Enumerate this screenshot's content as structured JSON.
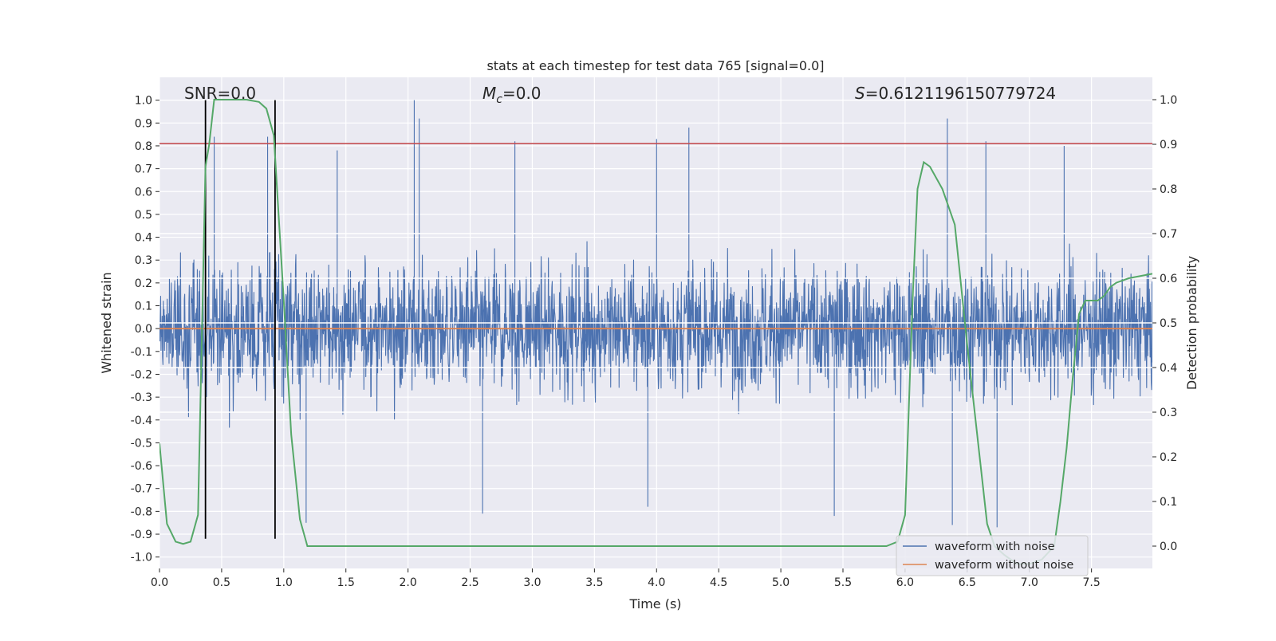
{
  "chart_data": {
    "type": "line",
    "title": "stats at each timestep for test data 765 [signal=0.0]",
    "xlabel": "Time (s)",
    "ylabel_left": "Whitened strain",
    "ylabel_right": "Detection probability",
    "xlim": [
      0.0,
      7.99
    ],
    "ylim_left": [
      -1.05,
      1.1
    ],
    "ylim_right": [
      -0.05,
      1.05
    ],
    "x_ticks": [
      "0.0",
      "0.5",
      "1.0",
      "1.5",
      "2.0",
      "2.5",
      "3.0",
      "3.5",
      "4.0",
      "4.5",
      "5.0",
      "5.5",
      "6.0",
      "6.5",
      "7.0",
      "7.5"
    ],
    "y_ticks_left": [
      "-1.0",
      "-0.9",
      "-0.8",
      "-0.7",
      "-0.6",
      "-0.5",
      "-0.4",
      "-0.3",
      "-0.2",
      "-0.1",
      "0.0",
      "0.1",
      "0.2",
      "0.3",
      "0.4",
      "0.5",
      "0.6",
      "0.7",
      "0.8",
      "0.9",
      "1.0"
    ],
    "y_ticks_right": [
      "0.0",
      "0.1",
      "0.2",
      "0.3",
      "0.4",
      "0.5",
      "0.6",
      "0.7",
      "0.8",
      "0.9",
      "1.0"
    ],
    "grid": true,
    "legend_position": "lower-right",
    "annotations": {
      "snr": "SNR=0.0",
      "mc_symbol": "M",
      "mc_subscript": "c",
      "mc_value": "=0.0",
      "s_symbol": "S",
      "s_value": "=0.6121196150779724"
    },
    "series": [
      {
        "name": "waveform with noise",
        "axis": "left",
        "color": "#4c72b0",
        "noise_sigma": 0.19,
        "peaks": [
          {
            "x": 0.44,
            "y": 0.84
          },
          {
            "x": 0.87,
            "y": 0.84
          },
          {
            "x": 1.43,
            "y": 0.78
          },
          {
            "x": 2.05,
            "y": 1.0
          },
          {
            "x": 2.09,
            "y": 0.92
          },
          {
            "x": 2.86,
            "y": 0.82
          },
          {
            "x": 4.0,
            "y": 0.83
          },
          {
            "x": 4.26,
            "y": 0.88
          },
          {
            "x": 6.34,
            "y": 0.92
          },
          {
            "x": 6.65,
            "y": 0.82
          },
          {
            "x": 7.28,
            "y": 0.8
          },
          {
            "x": 1.18,
            "y": -0.85
          },
          {
            "x": 2.6,
            "y": -0.81
          },
          {
            "x": 3.93,
            "y": -0.78
          },
          {
            "x": 5.43,
            "y": -0.82
          },
          {
            "x": 6.38,
            "y": -0.86
          },
          {
            "x": 6.74,
            "y": -0.87
          }
        ]
      },
      {
        "name": "waveform without noise",
        "axis": "left",
        "color": "#dd8452",
        "y_constant": 0.0
      },
      {
        "name": "Detection probability",
        "axis": "right",
        "color": "#55a868",
        "x": [
          0.0,
          0.06,
          0.13,
          0.19,
          0.25,
          0.31,
          0.37,
          0.4,
          0.44,
          0.5,
          0.6,
          0.7,
          0.8,
          0.86,
          0.92,
          1.0,
          1.06,
          1.13,
          1.19,
          1.25,
          1.4,
          5.7,
          5.85,
          5.94,
          6.0,
          6.06,
          6.1,
          6.15,
          6.2,
          6.3,
          6.4,
          6.5,
          6.6,
          6.66,
          6.72,
          6.8,
          6.9,
          7.0,
          7.1,
          7.2,
          7.25,
          7.3,
          7.35,
          7.4,
          7.45,
          7.5,
          7.55,
          7.6,
          7.65,
          7.7,
          7.8,
          7.99
        ],
        "y": [
          0.23,
          0.05,
          0.01,
          0.005,
          0.01,
          0.07,
          0.85,
          0.9,
          1.0,
          1.0,
          1.0,
          1.0,
          0.995,
          0.98,
          0.92,
          0.55,
          0.25,
          0.06,
          0.0,
          0.0,
          0.0,
          0.0,
          0.0,
          0.01,
          0.07,
          0.55,
          0.8,
          0.86,
          0.85,
          0.8,
          0.72,
          0.45,
          0.2,
          0.05,
          0.0,
          -0.02,
          -0.04,
          -0.04,
          -0.03,
          0.0,
          0.1,
          0.22,
          0.38,
          0.52,
          0.55,
          0.55,
          0.55,
          0.56,
          0.58,
          0.59,
          0.6,
          0.61
        ]
      }
    ],
    "vertical_lines": [
      0.37,
      0.93
    ],
    "horizontal_lines": [
      {
        "axis": "left",
        "y": 0.81,
        "color": "#c44e52"
      },
      {
        "axis": "right",
        "y": 0.7,
        "color": "#ffffff"
      },
      {
        "axis": "right",
        "y": 0.6,
        "color": "#ffffff"
      },
      {
        "axis": "right",
        "y": 0.5,
        "color": "#ffffff"
      },
      {
        "axis": "right",
        "y": 0.4,
        "color": "#ffffff"
      },
      {
        "axis": "right",
        "y": 0.3,
        "color": "#ffffff"
      }
    ]
  }
}
